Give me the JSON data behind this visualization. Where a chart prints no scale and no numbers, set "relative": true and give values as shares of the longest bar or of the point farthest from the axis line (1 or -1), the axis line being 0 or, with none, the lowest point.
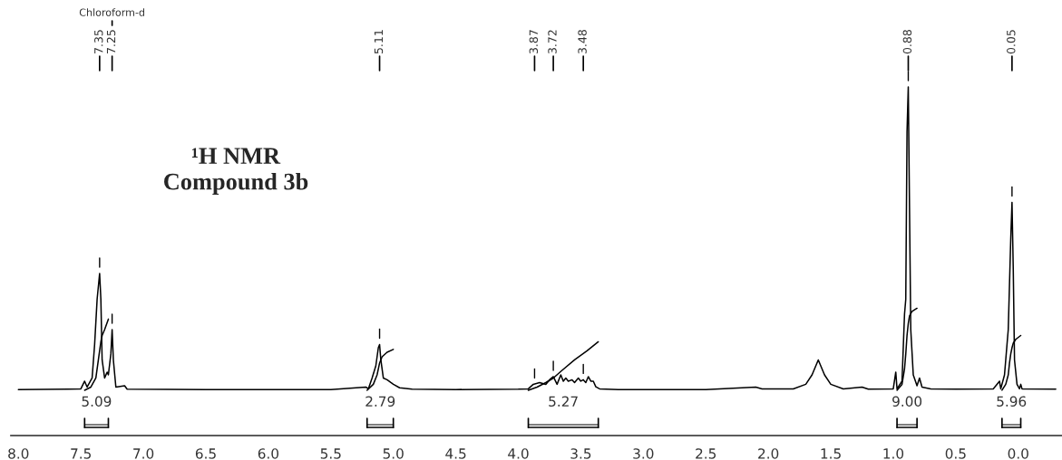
{
  "chart_data": {
    "type": "line",
    "relative": true,
    "title": "¹H NMR\nCompound 3b",
    "xlim": [
      8.06,
      -0.35
    ],
    "xticks": [
      {
        "value": 8,
        "label": "8.0"
      },
      {
        "value": 7.5,
        "label": "7.5"
      },
      {
        "value": 7,
        "label": "7.0"
      },
      {
        "value": 6.5,
        "label": "6.5"
      },
      {
        "value": 6,
        "label": "6.0"
      },
      {
        "value": 5.5,
        "label": "5.5"
      },
      {
        "value": 5,
        "label": "5.0"
      },
      {
        "value": 4.5,
        "label": "4.5"
      },
      {
        "value": 4,
        "label": "4.0"
      },
      {
        "value": 3.5,
        "label": "3.5"
      },
      {
        "value": 3,
        "label": "3.0"
      },
      {
        "value": 2.5,
        "label": "2.5"
      },
      {
        "value": 2,
        "label": "2.0"
      },
      {
        "value": 1.5,
        "label": "1.5"
      },
      {
        "value": 1,
        "label": "1.0"
      },
      {
        "value": 0.5,
        "label": "0.5"
      },
      {
        "value": 0,
        "label": "0.0"
      }
    ],
    "grid": false,
    "series": [
      {
        "color": "#000000",
        "x": [
          8.0,
          7.6,
          7.5,
          7.47,
          7.45,
          7.41,
          7.39,
          7.37,
          7.35,
          7.34,
          7.33,
          7.31,
          7.29,
          7.28,
          7.26,
          7.25,
          7.24,
          7.22,
          7.15,
          7.13,
          6.5,
          5.5,
          5.22,
          5.2,
          5.17,
          5.14,
          5.12,
          5.11,
          5.1,
          5.08,
          5.05,
          5.02,
          5.0,
          4.95,
          4.85,
          4.5,
          4.0,
          3.92,
          3.88,
          3.83,
          3.78,
          3.75,
          3.72,
          3.69,
          3.66,
          3.64,
          3.62,
          3.6,
          3.57,
          3.55,
          3.52,
          3.5,
          3.48,
          3.46,
          3.44,
          3.42,
          3.4,
          3.38,
          3.35,
          3.2,
          2.5,
          2.1,
          2.05,
          1.8,
          1.7,
          1.65,
          1.6,
          1.55,
          1.5,
          1.4,
          1.25,
          1.2,
          1.0,
          0.98,
          0.97,
          0.93,
          0.91,
          0.9,
          0.89,
          0.88,
          0.87,
          0.86,
          0.84,
          0.81,
          0.79,
          0.77,
          0.7,
          0.5,
          0.2,
          0.15,
          0.14,
          0.11,
          0.09,
          0.08,
          0.06,
          0.05,
          0.04,
          0.03,
          0.01,
          -0.01,
          -0.02,
          -0.03,
          -0.3
        ],
        "values": [
          0.132,
          0.133,
          0.134,
          0.156,
          0.139,
          0.165,
          0.261,
          0.391,
          0.465,
          0.391,
          0.217,
          0.165,
          0.182,
          0.174,
          0.234,
          0.304,
          0.217,
          0.139,
          0.143,
          0.133,
          0.132,
          0.132,
          0.139,
          0.134,
          0.165,
          0.2,
          0.252,
          0.261,
          0.217,
          0.165,
          0.16,
          0.152,
          0.147,
          0.137,
          0.133,
          0.132,
          0.133,
          0.134,
          0.147,
          0.152,
          0.147,
          0.16,
          0.169,
          0.147,
          0.174,
          0.156,
          0.165,
          0.156,
          0.16,
          0.152,
          0.165,
          0.156,
          0.16,
          0.152,
          0.169,
          0.156,
          0.156,
          0.14,
          0.134,
          0.132,
          0.132,
          0.139,
          0.134,
          0.134,
          0.147,
          0.174,
          0.217,
          0.174,
          0.147,
          0.134,
          0.139,
          0.133,
          0.134,
          0.182,
          0.134,
          0.156,
          0.348,
          0.391,
          0.87,
          1.0,
          0.652,
          0.304,
          0.174,
          0.143,
          0.165,
          0.139,
          0.134,
          0.133,
          0.134,
          0.156,
          0.134,
          0.174,
          0.261,
          0.304,
          0.565,
          0.669,
          0.478,
          0.217,
          0.147,
          0.134,
          0.147,
          0.134,
          0.133
        ]
      },
      {
        "color": "#000000",
        "x": [
          7.47,
          7.42,
          7.38,
          7.36,
          7.34,
          7.33,
          7.31,
          7.28
        ],
        "values": [
          0.13,
          0.139,
          0.165,
          0.217,
          0.269,
          0.287,
          0.304,
          0.334
        ]
      },
      {
        "color": "#000000",
        "x": [
          5.21,
          5.16,
          5.13,
          5.11,
          5.09,
          5.05,
          5.0
        ],
        "values": [
          0.13,
          0.147,
          0.174,
          0.208,
          0.226,
          0.239,
          0.247
        ]
      },
      {
        "color": "#000000",
        "x": [
          3.92,
          3.85,
          3.78,
          3.72,
          3.65,
          3.55,
          3.45,
          3.36
        ],
        "values": [
          0.13,
          0.139,
          0.152,
          0.165,
          0.187,
          0.217,
          0.243,
          0.269
        ]
      },
      {
        "color": "#000000",
        "x": [
          0.97,
          0.93,
          0.91,
          0.9,
          0.89,
          0.88,
          0.87,
          0.85,
          0.81
        ],
        "values": [
          0.13,
          0.147,
          0.191,
          0.234,
          0.287,
          0.321,
          0.343,
          0.356,
          0.365
        ]
      },
      {
        "color": "#000000",
        "x": [
          0.13,
          0.1,
          0.08,
          0.07,
          0.06,
          0.05,
          0.04,
          0.02,
          -0.02
        ],
        "values": [
          0.13,
          0.147,
          0.174,
          0.208,
          0.234,
          0.252,
          0.265,
          0.276,
          0.287
        ]
      }
    ],
    "annotations": [
      {
        "text": "Chloroform-d",
        "x": 7.25
      },
      {
        "text": "7.35",
        "x": 7.35
      },
      {
        "text": "7.25",
        "x": 7.25
      },
      {
        "text": "5.11",
        "x": 5.11
      },
      {
        "text": "3.87",
        "x": 3.87
      },
      {
        "text": "3.72",
        "x": 3.72
      },
      {
        "text": "3.48",
        "x": 3.48
      },
      {
        "text": "0.88",
        "x": 0.88
      },
      {
        "text": "0.05",
        "x": 0.05
      },
      "5.09",
      "2.79",
      "5.27",
      "9.00",
      "5.96"
    ]
  }
}
